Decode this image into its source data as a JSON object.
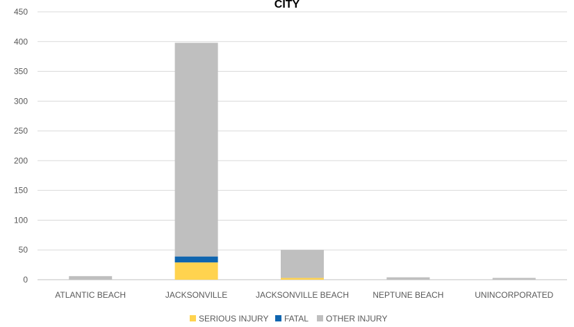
{
  "chart_data": {
    "type": "bar",
    "stacked": true,
    "title": "CITY",
    "xlabel": "",
    "ylabel": "",
    "ylim": [
      0,
      450
    ],
    "yticks": [
      0,
      50,
      100,
      150,
      200,
      250,
      300,
      350,
      400,
      450
    ],
    "grid": true,
    "legend_position": "bottom",
    "categories": [
      "ATLANTIC BEACH",
      "JACKSONVILLE",
      "JACKSONVILLE BEACH",
      "NEPTUNE BEACH",
      "UNINCORPORATED"
    ],
    "series": [
      {
        "name": "SERIOUS INJURY",
        "color": "#FFD34F",
        "values": [
          0,
          29,
          3,
          0,
          0
        ]
      },
      {
        "name": "FATAL",
        "color": "#0F65AF",
        "values": [
          0,
          10,
          0,
          0,
          0
        ]
      },
      {
        "name": "OTHER INJURY",
        "color": "#BFBFBF",
        "values": [
          6,
          359,
          47,
          4,
          3
        ]
      }
    ]
  }
}
